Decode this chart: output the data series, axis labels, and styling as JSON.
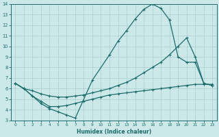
{
  "xlabel": "Humidex (Indice chaleur)",
  "xlim": [
    -0.5,
    23.5
  ],
  "ylim": [
    3,
    14
  ],
  "xticks": [
    0,
    1,
    2,
    3,
    4,
    5,
    6,
    7,
    8,
    9,
    10,
    11,
    12,
    13,
    14,
    15,
    16,
    17,
    18,
    19,
    20,
    21,
    22,
    23
  ],
  "yticks": [
    3,
    4,
    5,
    6,
    7,
    8,
    9,
    10,
    11,
    12,
    13,
    14
  ],
  "bg_color": "#cce8e8",
  "grid_color": "#aacece",
  "line_color": "#1a6b6b",
  "curve_top_x": [
    0,
    1,
    2,
    3,
    4,
    5,
    6,
    7,
    9,
    11,
    12,
    13,
    14,
    15,
    16,
    17,
    18,
    19,
    20,
    21,
    22,
    23
  ],
  "curve_top_y": [
    6.5,
    6.0,
    5.3,
    4.6,
    4.1,
    3.8,
    3.5,
    3.2,
    6.8,
    9.2,
    10.5,
    11.5,
    12.6,
    13.5,
    14.0,
    13.6,
    12.5,
    9.0,
    8.5,
    8.5,
    6.5,
    6.3
  ],
  "curve_mid_x": [
    0,
    1,
    2,
    3,
    4,
    5,
    6,
    7,
    8,
    9,
    10,
    11,
    12,
    13,
    14,
    15,
    16,
    17,
    18,
    19,
    20,
    21,
    22,
    23
  ],
  "curve_mid_y": [
    6.5,
    6.0,
    5.8,
    5.5,
    5.3,
    5.2,
    5.2,
    5.3,
    5.4,
    5.6,
    5.8,
    6.0,
    6.3,
    6.6,
    7.0,
    7.5,
    8.0,
    8.5,
    9.2,
    10.0,
    10.8,
    9.0,
    6.5,
    6.3
  ],
  "curve_bot_x": [
    0,
    1,
    2,
    3,
    4,
    5,
    6,
    7,
    8,
    9,
    10,
    11,
    12,
    13,
    14,
    15,
    16,
    17,
    18,
    19,
    20,
    21,
    22,
    23
  ],
  "curve_bot_y": [
    6.5,
    6.0,
    5.3,
    4.8,
    4.3,
    4.3,
    4.4,
    4.6,
    4.8,
    5.0,
    5.2,
    5.4,
    5.5,
    5.6,
    5.7,
    5.8,
    5.9,
    6.0,
    6.1,
    6.2,
    6.3,
    6.4,
    6.4,
    6.4
  ]
}
